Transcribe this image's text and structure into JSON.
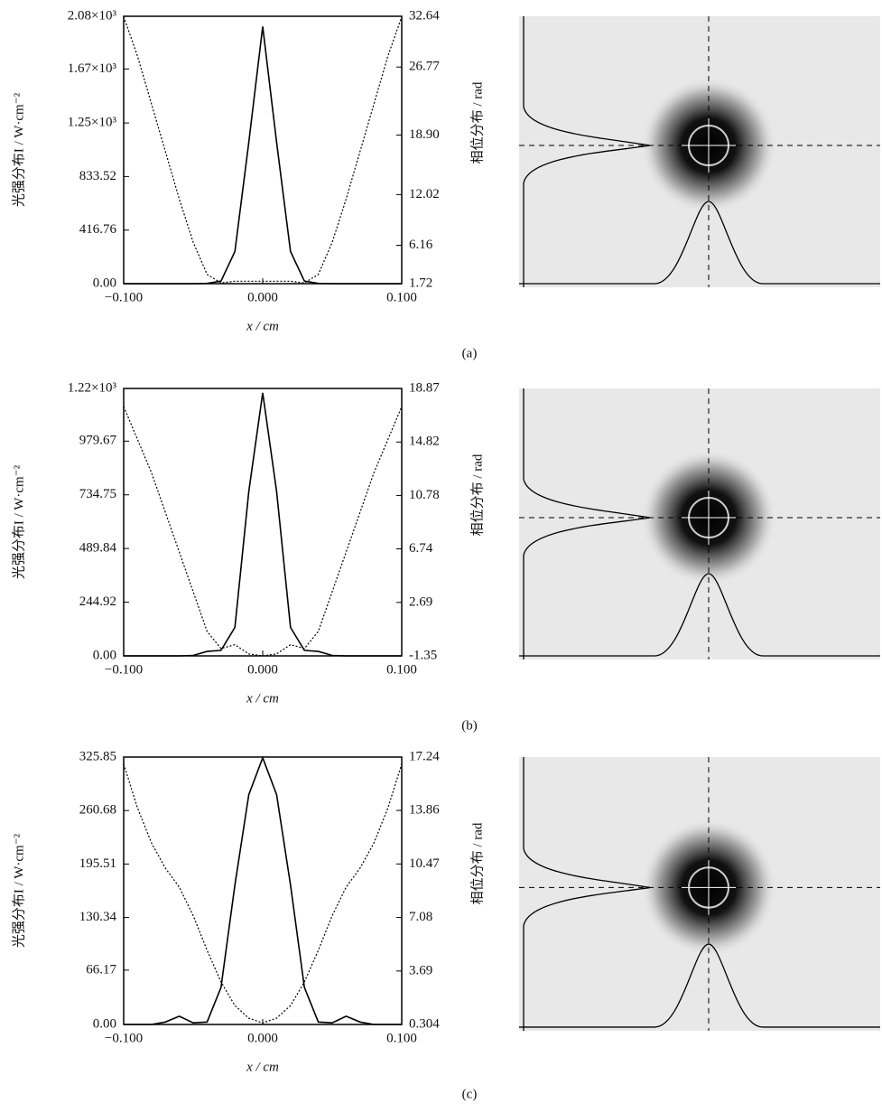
{
  "chart_data": [
    {
      "type": "line",
      "panel_label": "(a)",
      "x_label": "x / cm",
      "y_label": "光强分布I / W·cm⁻²",
      "y2_label": "相位分布 / rad",
      "x": [
        -0.1,
        -0.09,
        -0.08,
        -0.07,
        -0.06,
        -0.05,
        -0.04,
        -0.03,
        -0.02,
        -0.01,
        0,
        0.01,
        0.02,
        0.03,
        0.04,
        0.05,
        0.06,
        0.07,
        0.08,
        0.09,
        0.1
      ],
      "xlim": [
        -0.1,
        0.1
      ],
      "xticks": [
        {
          "value": -0.1,
          "label": "−0.100"
        },
        {
          "value": 0,
          "label": "0.000"
        },
        {
          "value": 0.1,
          "label": "0.100"
        }
      ],
      "ylim": [
        0,
        2080
      ],
      "yticks": [
        {
          "value": 0,
          "label": "0.00"
        },
        416.76,
        833.52,
        {
          "value": 1250,
          "label": "1.25×10³"
        },
        {
          "value": 1670,
          "label": "1.67×10³"
        },
        {
          "value": 2080,
          "label": "2.08×10³"
        }
      ],
      "y2lim": [
        1.72,
        32.64
      ],
      "y2ticks": [
        1.72,
        6.16,
        12.02,
        {
          "value": 18.9,
          "label": "18.90"
        },
        26.77,
        32.64
      ],
      "series": [
        {
          "color": "#000000",
          "dashed": false,
          "values": [
            0,
            0,
            0,
            0,
            0,
            0,
            2,
            20,
            250,
            1100,
            2000,
            1100,
            250,
            20,
            2,
            0,
            0,
            0,
            0,
            0,
            0
          ]
        },
        {
          "color": "#000000",
          "dashed": true,
          "axis": "y2",
          "values": [
            32.6,
            28,
            22.5,
            17,
            11.5,
            6.5,
            2.8,
            1.8,
            2,
            2,
            2,
            2,
            2,
            1.8,
            2.8,
            6.5,
            11.5,
            17,
            22.5,
            28,
            32.6
          ]
        }
      ]
    },
    {
      "type": "line",
      "panel_label": "(b)",
      "x_label": "x / cm",
      "y_label": "光强分布I / W·cm⁻²",
      "y2_label": "相位分布 / rad",
      "x": [
        -0.1,
        -0.09,
        -0.08,
        -0.07,
        -0.06,
        -0.05,
        -0.04,
        -0.03,
        -0.02,
        -0.01,
        0,
        0.01,
        0.02,
        0.03,
        0.04,
        0.05,
        0.06,
        0.07,
        0.08,
        0.09,
        0.1
      ],
      "xlim": [
        -0.1,
        0.1
      ],
      "xticks": [
        {
          "value": -0.1,
          "label": "−0.100"
        },
        {
          "value": 0,
          "label": "0.000"
        },
        {
          "value": 0.1,
          "label": "0.100"
        }
      ],
      "ylim": [
        0,
        1220
      ],
      "yticks": [
        {
          "value": 0,
          "label": "0.00"
        },
        244.92,
        489.84,
        734.75,
        979.67,
        {
          "value": 1220,
          "label": "1.22×10³"
        }
      ],
      "y2lim": [
        -1.35,
        18.87
      ],
      "y2ticks": [
        -1.35,
        2.69,
        6.74,
        10.78,
        14.82,
        18.87
      ],
      "series": [
        {
          "color": "#000000",
          "dashed": false,
          "values": [
            0,
            0,
            0,
            0,
            0,
            2,
            20,
            25,
            130,
            750,
            1200,
            750,
            130,
            25,
            20,
            2,
            0,
            0,
            0,
            0,
            0
          ]
        },
        {
          "color": "#000000",
          "dashed": true,
          "axis": "y2",
          "values": [
            17.5,
            15,
            12.5,
            9.5,
            6.5,
            3.5,
            0.5,
            -0.8,
            -0.5,
            -1.2,
            -1.35,
            -1.2,
            -0.5,
            -0.8,
            0.5,
            3.5,
            6.5,
            9.5,
            12.5,
            15,
            17.5
          ]
        }
      ]
    },
    {
      "type": "line",
      "panel_label": "(c)",
      "x_label": "x / cm",
      "y_label": "光强分布I / W·cm⁻²",
      "y2_label": "相位分布 / rad",
      "x": [
        -0.1,
        -0.09,
        -0.08,
        -0.07,
        -0.06,
        -0.05,
        -0.04,
        -0.03,
        -0.02,
        -0.01,
        0,
        0.01,
        0.02,
        0.03,
        0.04,
        0.05,
        0.06,
        0.07,
        0.08,
        0.09,
        0.1
      ],
      "xlim": [
        -0.1,
        0.1
      ],
      "xticks": [
        {
          "value": -0.1,
          "label": "−0.100"
        },
        {
          "value": 0,
          "label": "0.000"
        },
        {
          "value": 0.1,
          "label": "0.100"
        }
      ],
      "ylim": [
        0,
        325.85
      ],
      "yticks": [
        {
          "value": 0,
          "label": "0.00"
        },
        66.17,
        130.34,
        195.51,
        260.68,
        325.85
      ],
      "y2lim": [
        0.304,
        17.24
      ],
      "y2ticks": [
        0.304,
        3.69,
        7.08,
        10.47,
        13.86,
        17.24
      ],
      "series": [
        {
          "color": "#000000",
          "dashed": false,
          "values": [
            0,
            0,
            0,
            3,
            10,
            2,
            3,
            45,
            170,
            280,
            325,
            280,
            170,
            45,
            3,
            2,
            10,
            3,
            0,
            0,
            0
          ]
        },
        {
          "color": "#000000",
          "dashed": true,
          "axis": "y2",
          "values": [
            16.8,
            14,
            11.8,
            10.2,
            9,
            7.2,
            5,
            3,
            1.5,
            0.7,
            0.4,
            0.7,
            1.5,
            3,
            5,
            7.2,
            9,
            10.2,
            11.8,
            14,
            16.8
          ]
        }
      ]
    }
  ]
}
